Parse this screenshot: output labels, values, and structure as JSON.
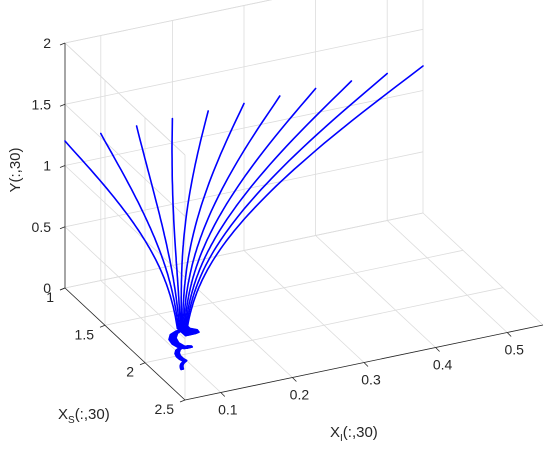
{
  "chart_data": {
    "type": "line",
    "title": "",
    "projection": "3d",
    "grid": true,
    "x_axis": {
      "label_main": "X",
      "label_sub": "I",
      "label_rest": "(:,30)",
      "range": [
        0.05,
        0.55
      ],
      "ticks": [
        "0.1",
        "0.2",
        "0.3",
        "0.4",
        "0.5"
      ],
      "tick_values": [
        0.1,
        0.2,
        0.3,
        0.4,
        0.5
      ]
    },
    "y_axis": {
      "label_main": "X",
      "label_sub": "S",
      "label_rest": "(:,30)",
      "range": [
        1,
        2.5
      ],
      "ticks": [
        "1",
        "1.5",
        "2",
        "2.5"
      ],
      "tick_values": [
        1,
        1.5,
        2,
        2.5
      ]
    },
    "z_axis": {
      "label": "Y(:,30)",
      "range": [
        0,
        2
      ],
      "ticks": [
        "0",
        "0.5",
        "1",
        "1.5",
        "2"
      ],
      "tick_values": [
        0,
        0.5,
        1,
        1.5,
        2
      ]
    },
    "line_color": "#0000ff",
    "series": [
      {
        "start": {
          "x": 0.05,
          "y": 1.0,
          "z": 1.2
        }
      },
      {
        "start": {
          "x": 0.1,
          "y": 1.0,
          "z": 1.2
        }
      },
      {
        "start": {
          "x": 0.15,
          "y": 1.0,
          "z": 1.2
        }
      },
      {
        "start": {
          "x": 0.2,
          "y": 1.0,
          "z": 1.2
        }
      },
      {
        "start": {
          "x": 0.25,
          "y": 1.0,
          "z": 1.2
        }
      },
      {
        "start": {
          "x": 0.3,
          "y": 1.0,
          "z": 1.2
        }
      },
      {
        "start": {
          "x": 0.35,
          "y": 1.0,
          "z": 1.2
        }
      },
      {
        "start": {
          "x": 0.4,
          "y": 1.0,
          "z": 1.2
        }
      },
      {
        "start": {
          "x": 0.45,
          "y": 1.0,
          "z": 1.2
        }
      },
      {
        "start": {
          "x": 0.5,
          "y": 1.0,
          "z": 1.2
        }
      },
      {
        "start": {
          "x": 0.55,
          "y": 1.0,
          "z": 1.2
        }
      }
    ],
    "convergence_point": {
      "x": 0.08,
      "y": 2.2,
      "z": 0.02
    }
  }
}
